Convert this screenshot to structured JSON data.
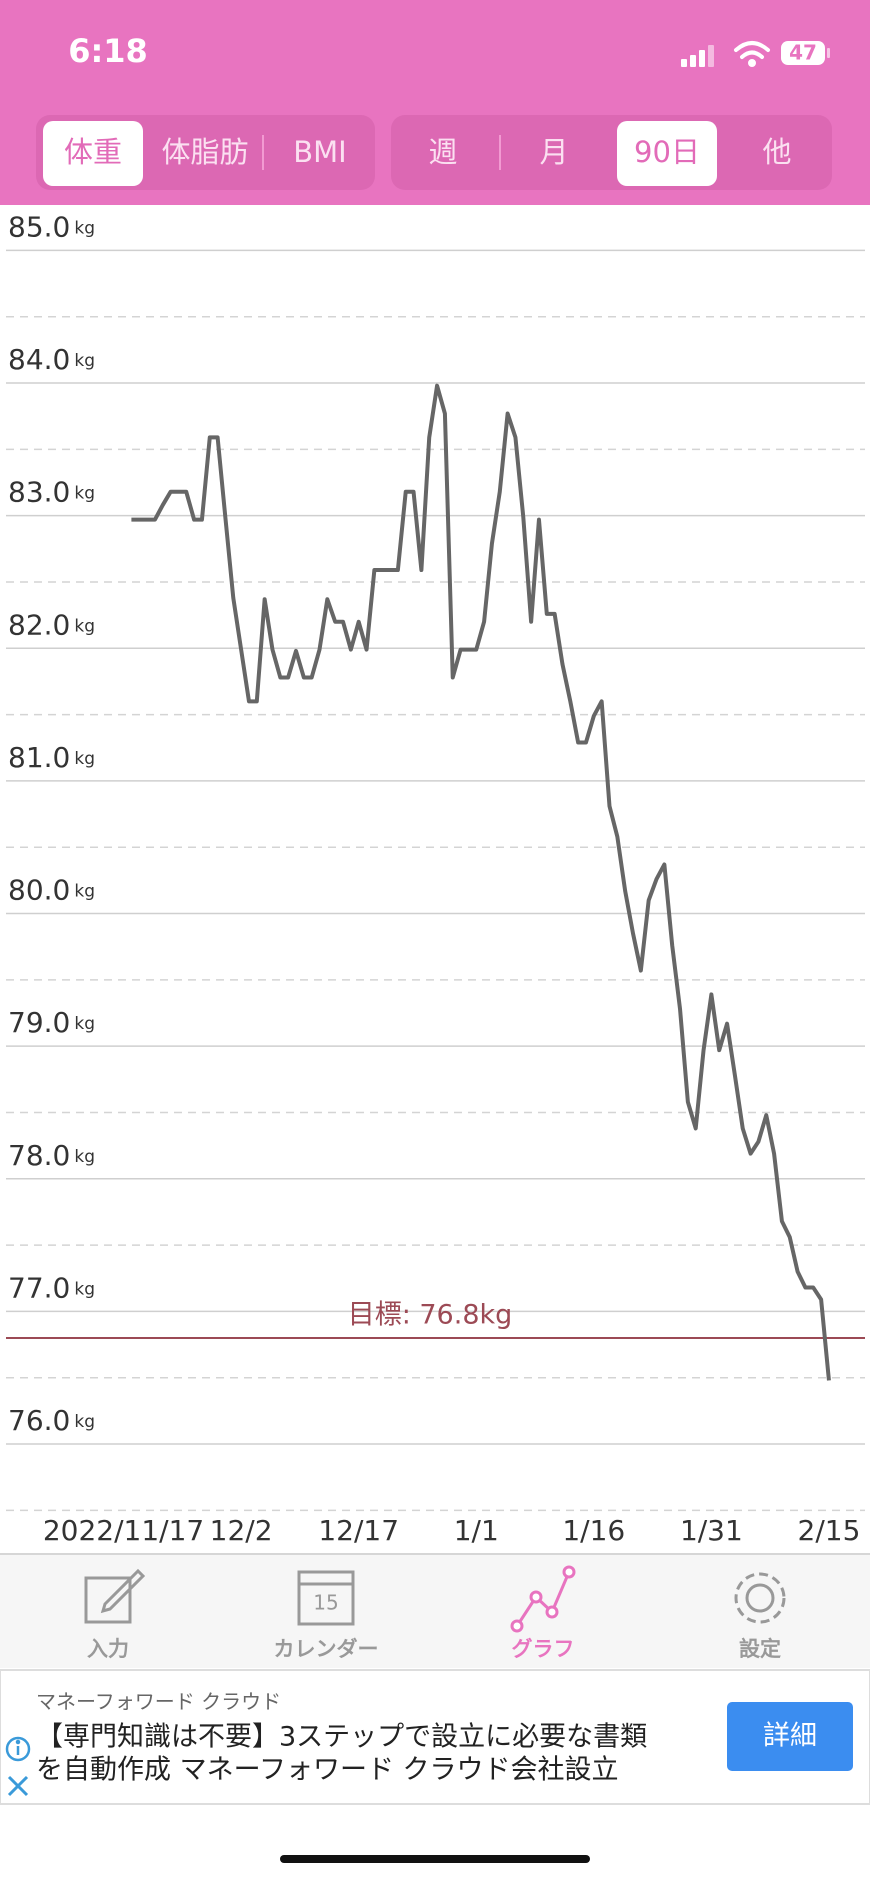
{
  "status_bar": {
    "time": "6:18",
    "battery": "47"
  },
  "metric_tabs": [
    {
      "label": "体重",
      "selected": true
    },
    {
      "label": "体脂肪",
      "selected": false
    },
    {
      "label": "BMI",
      "selected": false
    }
  ],
  "period_tabs": [
    {
      "label": "週",
      "selected": false
    },
    {
      "label": "月",
      "selected": false
    },
    {
      "label": "90日",
      "selected": true
    },
    {
      "label": "他",
      "selected": false
    }
  ],
  "chart_data": {
    "type": "line",
    "x": [
      1,
      2,
      3,
      4,
      5,
      6,
      7,
      8,
      9,
      10,
      11,
      12,
      13,
      14,
      15,
      16,
      17,
      18,
      19,
      20,
      21,
      22,
      23,
      24,
      25,
      26,
      27,
      28,
      29,
      30,
      31,
      32,
      33,
      34,
      35,
      36,
      37,
      38,
      39,
      40,
      41,
      42,
      43,
      44,
      45,
      46,
      47,
      48,
      49,
      50,
      51,
      52,
      53,
      54,
      55,
      56,
      57,
      58,
      59,
      60,
      61,
      62,
      63,
      64,
      65,
      66,
      67,
      68,
      69,
      70,
      71,
      72,
      73,
      74,
      75,
      76,
      77,
      78,
      79,
      80,
      81,
      82,
      83,
      84,
      85,
      86,
      87,
      88,
      89,
      90
    ],
    "values": [
      82.97,
      82.97,
      82.97,
      82.97,
      83.08,
      83.18,
      83.18,
      83.18,
      82.97,
      82.97,
      83.59,
      83.59,
      82.98,
      82.38,
      81.99,
      81.6,
      81.6,
      82.37,
      81.99,
      81.78,
      81.78,
      81.98,
      81.78,
      81.78,
      81.99,
      82.37,
      82.2,
      82.2,
      81.99,
      82.2,
      81.99,
      82.59,
      82.59,
      82.59,
      82.59,
      83.18,
      83.18,
      82.59,
      83.59,
      83.98,
      83.77,
      81.78,
      81.99,
      81.99,
      81.99,
      82.2,
      82.79,
      83.18,
      83.77,
      83.59,
      82.99,
      82.2,
      82.97,
      82.26,
      82.26,
      81.88,
      81.6,
      81.29,
      81.29,
      81.49,
      81.6,
      80.81,
      80.58,
      80.17,
      79.85,
      79.57,
      80.1,
      80.26,
      80.37,
      79.76,
      79.28,
      78.58,
      78.38,
      78.97,
      79.39,
      78.97,
      79.17,
      78.78,
      78.38,
      78.19,
      78.28,
      78.48,
      78.19,
      77.68,
      77.56,
      77.3,
      77.18,
      77.18,
      77.09,
      76.48
    ],
    "color": "#666666",
    "xlim": [
      -15,
      94.6
    ],
    "xticks": [
      {
        "value": 0,
        "label": "2022/11/17"
      },
      {
        "value": 15,
        "label": "12/2"
      },
      {
        "value": 30,
        "label": "12/17"
      },
      {
        "value": 45,
        "label": "1/1"
      },
      {
        "value": 60,
        "label": "1/16"
      },
      {
        "value": 75,
        "label": "1/31"
      },
      {
        "value": 90,
        "label": "2/15"
      }
    ],
    "ylim": [
      75.45,
      85.35
    ],
    "yticks": [
      {
        "value": 76,
        "label": "76.0"
      },
      {
        "value": 77,
        "label": "77.0"
      },
      {
        "value": 78,
        "label": "78.0"
      },
      {
        "value": 79,
        "label": "79.0"
      },
      {
        "value": 80,
        "label": "80.0"
      },
      {
        "value": 81,
        "label": "81.0"
      },
      {
        "value": 82,
        "label": "82.0"
      },
      {
        "value": 83,
        "label": "83.0"
      },
      {
        "value": 84,
        "label": "84.0"
      },
      {
        "value": 85,
        "label": "85.0"
      }
    ],
    "minor_yticks": [
      75.5,
      76.5,
      77.5,
      78.5,
      79.5,
      80.5,
      81.5,
      82.5,
      83.5,
      84.5
    ],
    "y_unit": "kg",
    "grid": true,
    "goal": {
      "value": 76.8,
      "label": "目標: 76.8kg",
      "color": "#9c4a55"
    }
  },
  "tab_bar": [
    {
      "label": "入力",
      "selected": false
    },
    {
      "label": "カレンダー",
      "icon_text": "15",
      "selected": false
    },
    {
      "label": "グラフ",
      "selected": true
    },
    {
      "label": "設定",
      "selected": false
    }
  ],
  "ad": {
    "advertiser": "マネーフォワード クラウド",
    "text_lines": [
      "【専門知識は不要】3ステップで設立に必要な書類",
      "を自動作成 マネーフォワード クラウド会社設立"
    ],
    "button": "詳細"
  }
}
